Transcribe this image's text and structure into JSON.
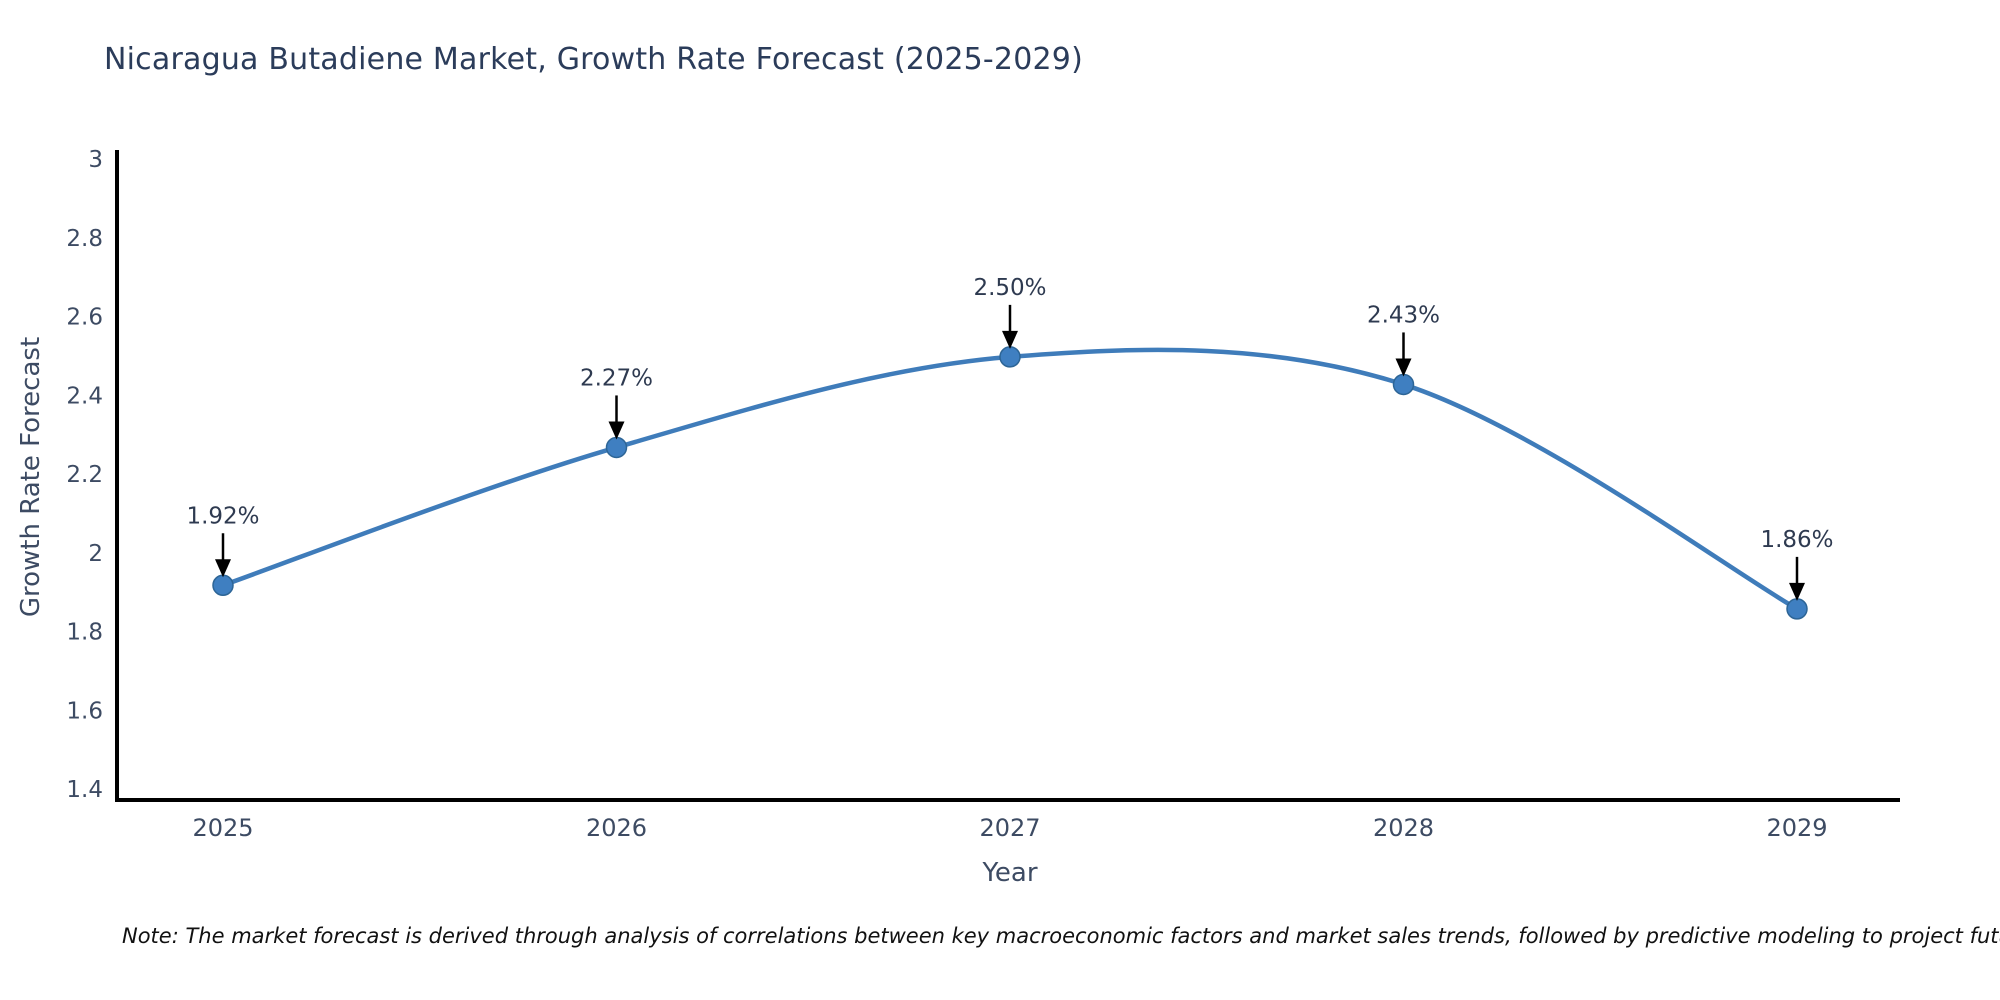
{
  "title": "Nicaragua Butadiene Market, Growth Rate Forecast (2025-2029)",
  "note": "Note: The market forecast is derived through analysis of correlations between key macroeconomic factors and market sales trends, followed by predictive modeling to project future sales",
  "chart_data": {
    "type": "line",
    "title": "Nicaragua Butadiene Market, Growth Rate Forecast (2025-2029)",
    "xlabel": "Year",
    "ylabel": "Growth Rate Forecast",
    "categories": [
      "2025",
      "2026",
      "2027",
      "2028",
      "2029"
    ],
    "series": [
      {
        "name": "Growth Rate Forecast",
        "values": [
          1.92,
          2.27,
          2.5,
          2.43,
          1.86
        ],
        "point_labels": [
          "1.92%",
          "2.27%",
          "2.50%",
          "2.43%",
          "1.86%"
        ]
      }
    ],
    "line_shape": "spline",
    "markers": true,
    "annotation_arrows": true,
    "ylim": [
      1.38,
      3.02
    ],
    "yticks": [
      3,
      2.8,
      2.6,
      2.4,
      2.2,
      2,
      1.8,
      1.6,
      1.4
    ],
    "ytick_labels": [
      "3",
      "2.8",
      "2.6",
      "2.4",
      "2.2",
      "2",
      "1.8",
      "1.6",
      "1.4"
    ],
    "grid": false,
    "legend_position": "none",
    "colors": {
      "line": "#3f7cba",
      "marker_fill": "#3f7fc1",
      "marker_edge": "#2d6596",
      "arrow": "#000000",
      "axis_line": "#000000",
      "tick_text": "#3d4b63",
      "annotation_text": "#2e3a50",
      "title_text": "#2b3c5a",
      "note_text": "#111111",
      "background": "#ffffff"
    }
  }
}
